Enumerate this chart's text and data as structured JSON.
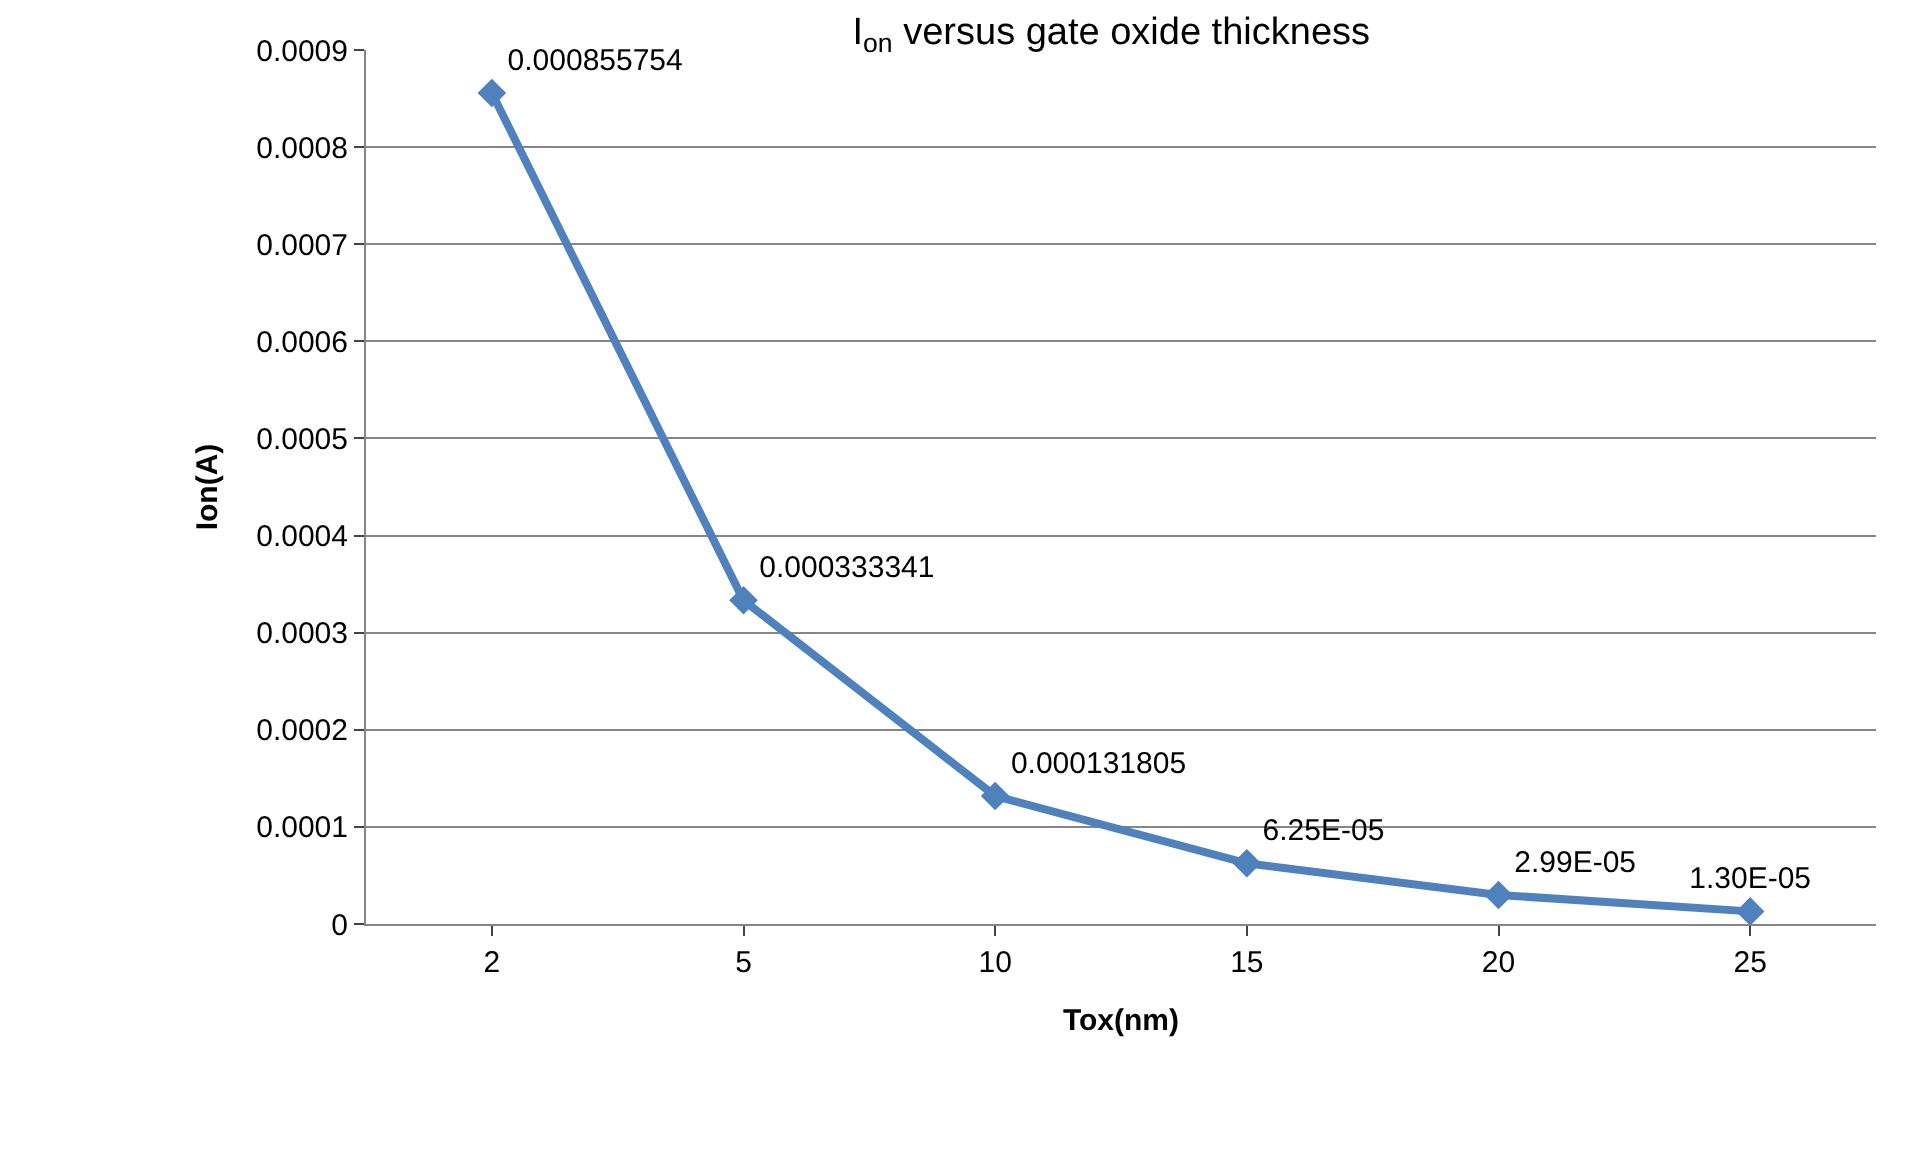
{
  "chart_data": {
    "type": "line",
    "title": "I$_{on}$ versus gate oxide thickness",
    "xlabel": "Tox(nm)",
    "ylabel": "Ion(A)",
    "categories": [
      "2",
      "5",
      "10",
      "15",
      "20",
      "25"
    ],
    "series": [
      {
        "color": "#4f81bd",
        "values": [
          0.000855754,
          0.000333341,
          0.000131805,
          6.25e-05,
          2.99e-05,
          1.3e-05
        ],
        "value_labels": [
          "0.000855754",
          "0.000333341",
          "0.000131805",
          "6.25E-05",
          "2.99E-05",
          "1.30E-05"
        ]
      }
    ],
    "ylim": [
      0,
      0.0009
    ],
    "yticks": [
      0,
      0.0001,
      0.0002,
      0.0003,
      0.0004,
      0.0005,
      0.0006,
      0.0007,
      0.0008,
      0.0009
    ],
    "grid": "y",
    "marker": "diamond",
    "line_style": "solid"
  }
}
